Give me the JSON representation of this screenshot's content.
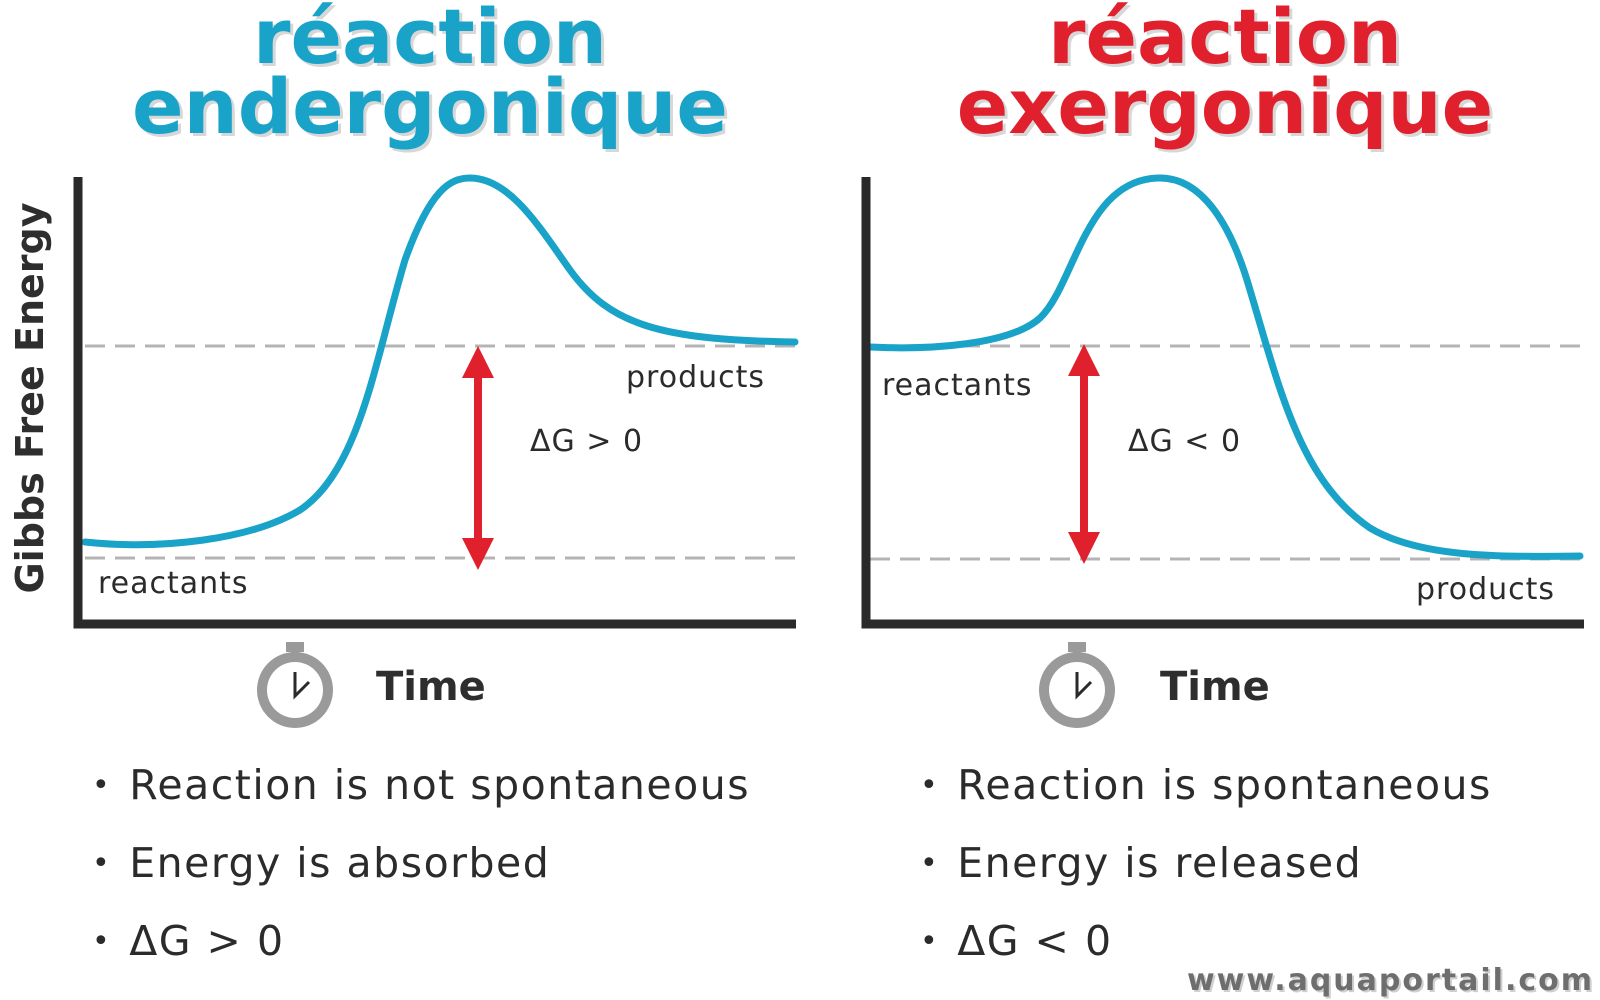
{
  "left": {
    "title_line1": "réaction",
    "title_line2": "endergonique",
    "title_color": "#1aa3c8",
    "reactants_label": "reactants",
    "products_label": "products",
    "delta_label": "ΔG > 0",
    "time_label": "Time",
    "bullets": [
      "Reaction is not spontaneous",
      "Energy is absorbed",
      "ΔG > 0"
    ]
  },
  "right": {
    "title_line1": "réaction",
    "title_line2": "exergonique",
    "title_color": "#e0202c",
    "reactants_label": "reactants",
    "products_label": "products",
    "delta_label": "ΔG < 0",
    "time_label": "Time",
    "bullets": [
      "Reaction is spontaneous",
      "Energy is released",
      "ΔG < 0"
    ]
  },
  "y_axis_label": "Gibbs Free Energy",
  "watermark": "www.aquaportail.com",
  "colors": {
    "curve": "#1aa3c8",
    "arrow": "#e0202c",
    "axis": "#2a2a2a",
    "dashed": "#b4b4b4",
    "stopwatch": "#9a9a9a"
  },
  "icons": [
    "stopwatch-icon",
    "double-arrow-icon"
  ]
}
